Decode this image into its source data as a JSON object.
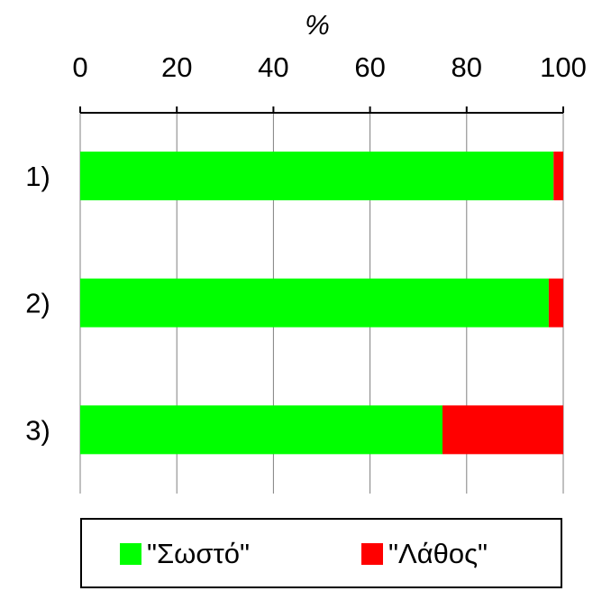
{
  "chart_data": {
    "type": "bar",
    "orientation": "horizontal",
    "stacked": true,
    "xlabel": "%",
    "xlim": [
      0,
      100
    ],
    "xticks": [
      "0",
      "20",
      "40",
      "60",
      "80",
      "100"
    ],
    "categories": [
      "1)",
      "2)",
      "3)"
    ],
    "series": [
      {
        "name": "\"Σωστό\"",
        "values": [
          98,
          97,
          75
        ],
        "color": "#00ff00"
      },
      {
        "name": "\"Λάθος\"",
        "values": [
          2,
          3,
          25
        ],
        "color": "#ff0000"
      }
    ],
    "grid": true,
    "axis_position": "top",
    "legend_position": "bottom"
  }
}
